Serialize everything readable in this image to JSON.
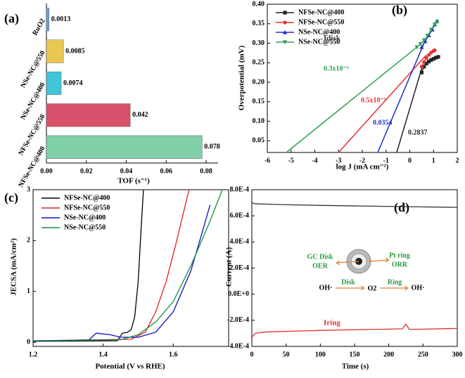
{
  "chart_data": [
    {
      "type": "hbar",
      "panel": "(a)",
      "x_label": "TOF (s⁻¹)",
      "categories": [
        "RuO2",
        "NSe-NC@550",
        "NSe-NC@400",
        "NFSe-NC@550",
        "NFSe-NC@400"
      ],
      "values": [
        0.0013,
        0.0085,
        0.0074,
        0.042,
        0.078
      ],
      "value_labels": [
        "0.0013",
        "0.0085",
        "0.0074",
        "0.042",
        "0.078"
      ],
      "colors": [
        "#6f9fd8",
        "#e8c850",
        "#3fc4d8",
        "#d8506a",
        "#7fd0a8"
      ],
      "xlim": [
        0,
        0.086
      ],
      "xticks": [
        {
          "value": 0,
          "label": "0.00"
        },
        0.02,
        0.04,
        0.06,
        0.08
      ]
    },
    {
      "type": "line",
      "panel": "(b)",
      "x_label": "log J (mA cm⁻²)",
      "y_label": "Overpotential (mV)",
      "xlim": [
        -6,
        2
      ],
      "xticks": [
        -6,
        -5,
        -4,
        -3,
        -2,
        -1,
        0,
        1,
        2
      ],
      "ylim": [
        0.02,
        0.4
      ],
      "yticks": [
        0.05,
        {
          "value": 0.1,
          "label": "0.10"
        },
        0.15,
        {
          "value": 0.2,
          "label": "0.20"
        },
        0.25,
        {
          "value": 0.3,
          "label": "0.30"
        },
        0.35,
        {
          "value": 0.4,
          "label": "0.40"
        }
      ],
      "legend": "top-left",
      "series": [
        {
          "name": "NFSe-NC@400",
          "color": "#222222",
          "marker": "square",
          "x": [
            0.5,
            0.6,
            0.7,
            0.8,
            0.9,
            1.0,
            1.1,
            1.2
          ],
          "values": [
            0.225,
            0.24,
            0.248,
            0.253,
            0.257,
            0.26,
            0.263,
            0.265
          ],
          "fit": {
            "x": [
              -0.55,
              0.55
            ],
            "values": [
              0.02,
              0.245
            ]
          },
          "fit_label": "0.2837"
        },
        {
          "name": "NFSe-NC@550",
          "color": "#e83030",
          "marker": "circle",
          "x": [
            0.5,
            0.6,
            0.7,
            0.8,
            0.9,
            1.0,
            1.05
          ],
          "values": [
            0.24,
            0.252,
            0.262,
            0.27,
            0.276,
            0.28,
            0.282
          ],
          "fit": {
            "x": [
              -3.0,
              0.7
            ],
            "values": [
              0.02,
              0.27
            ]
          },
          "fit_label": "0.5x10⁻³"
        },
        {
          "name": "NSe-NC@400",
          "color": "#2030c0",
          "marker": "triangle",
          "x": [
            0.5,
            0.65,
            0.8,
            0.95,
            1.05,
            1.15
          ],
          "values": [
            0.29,
            0.305,
            0.32,
            0.335,
            0.348,
            0.357
          ],
          "fit": {
            "x": [
              -1.35,
              0.6
            ],
            "values": [
              0.02,
              0.3
            ]
          },
          "fit_label": "0.0354"
        },
        {
          "name": "NSe-NC@550",
          "color": "#30a050",
          "marker": "triangle-down",
          "x": [
            0.3,
            0.45,
            0.6,
            0.75,
            0.9,
            1.05,
            1.15
          ],
          "values": [
            0.29,
            0.298,
            0.308,
            0.32,
            0.335,
            0.348,
            0.355
          ],
          "fit": {
            "x": [
              -5.2,
              0.3
            ],
            "values": [
              0.02,
              0.29
            ]
          },
          "fit_label": "0.3x10⁻⁵"
        }
      ]
    },
    {
      "type": "line",
      "panel": "(c)",
      "x_label": "Potential (V vs RHE)",
      "y_label": "JECSA (mA/cm²)",
      "xlim": [
        1.2,
        1.758
      ],
      "xticks": [
        1.2,
        1.4,
        1.6
      ],
      "ylim": [
        -0.08,
        3
      ],
      "yticks": [
        0,
        1,
        2,
        3
      ],
      "legend": "top-left",
      "series": [
        {
          "name": "NFSe-NC@400",
          "color": "#000000",
          "x": [
            1.2,
            1.44,
            1.455,
            1.47,
            1.48,
            1.49,
            1.5,
            1.508,
            1.515
          ],
          "values": [
            0.02,
            0.03,
            0.18,
            0.2,
            0.25,
            0.5,
            1.2,
            2.2,
            3
          ]
        },
        {
          "name": "NFSe-NC@550",
          "color": "#e82020",
          "x": [
            1.2,
            1.48,
            1.52,
            1.55,
            1.58,
            1.61,
            1.645
          ],
          "values": [
            0.03,
            0.06,
            0.2,
            0.6,
            1.2,
            2.0,
            3
          ]
        },
        {
          "name": "NSe-NC@400",
          "color": "#1010c0",
          "x": [
            1.2,
            1.36,
            1.38,
            1.42,
            1.45,
            1.5,
            1.55,
            1.6,
            1.65,
            1.68,
            1.705
          ],
          "values": [
            0.02,
            0.05,
            0.18,
            0.15,
            0.1,
            0.1,
            0.2,
            0.6,
            1.4,
            2.1,
            2.7
          ]
        },
        {
          "name": "NSe-NC@550",
          "color": "#109040",
          "x": [
            1.2,
            1.45,
            1.5,
            1.55,
            1.6,
            1.65,
            1.7,
            1.74
          ],
          "values": [
            0.03,
            0.05,
            0.15,
            0.4,
            0.8,
            1.5,
            2.3,
            3
          ]
        }
      ]
    },
    {
      "type": "line",
      "panel": "(d)",
      "x_label": "Time (s)",
      "y_label": "Current (A)",
      "xlim": [
        0,
        300
      ],
      "xticks": [
        0,
        50,
        100,
        150,
        200,
        250,
        300
      ],
      "ylim": [
        -0.0004,
        0.0008
      ],
      "yticks": [
        {
          "value": -0.0004,
          "label": "-4.0E-4"
        },
        {
          "value": -0.0002,
          "label": "-2.0E-4"
        },
        {
          "value": 0,
          "label": "0.0E+0"
        },
        {
          "value": 0.0002,
          "label": "2.0E-4"
        },
        {
          "value": 0.0004,
          "label": "4.0E-4"
        },
        {
          "value": 0.0006,
          "label": "6.0E-4"
        },
        {
          "value": 0.0008,
          "label": "8.0E-4"
        }
      ],
      "series": [
        {
          "name": "Idisk",
          "color": "#333333",
          "x": [
            0,
            5,
            50,
            100,
            150,
            200,
            250,
            300
          ],
          "values": [
            0.0007,
            0.000692,
            0.000685,
            0.00068,
            0.000676,
            0.000672,
            0.000668,
            0.000665
          ]
        },
        {
          "name": "Iring",
          "color": "#e03030",
          "x": [
            0,
            5,
            20,
            50,
            100,
            150,
            200,
            220,
            225,
            230,
            250,
            300
          ],
          "values": [
            -0.00033,
            -0.0003,
            -0.00029,
            -0.000285,
            -0.000278,
            -0.000272,
            -0.000268,
            -0.000265,
            -0.00023,
            -0.00027,
            -0.000268,
            -0.000262
          ]
        }
      ],
      "annotations": [
        "GC Disk",
        "OER",
        "Pt ring",
        "ORR",
        "OH·",
        "Disk",
        "O2",
        "Ring",
        "OH·"
      ]
    }
  ]
}
